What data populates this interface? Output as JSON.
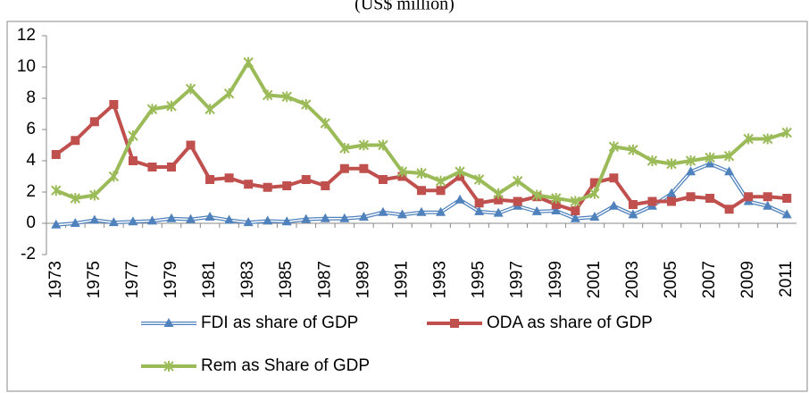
{
  "chart_data": {
    "type": "line",
    "subtitle": "(US$ million)",
    "categories": [
      "1973",
      null,
      "1975",
      null,
      "1977",
      null,
      "1979",
      null,
      "1981",
      null,
      "1983",
      null,
      "1985",
      null,
      "1987",
      null,
      "1989",
      null,
      "1991",
      null,
      "1993",
      null,
      "1995",
      null,
      "1997",
      null,
      "1999",
      null,
      "2001",
      null,
      "2003",
      null,
      "2005",
      null,
      "2007",
      null,
      "2009",
      null,
      "2011"
    ],
    "series": [
      {
        "name": "FDI as share of GDP",
        "color": "#4f81bd",
        "marker": "triangle",
        "values": [
          -0.1,
          0.0,
          0.2,
          0.05,
          0.1,
          0.15,
          0.3,
          0.25,
          0.4,
          0.2,
          0.05,
          0.15,
          0.1,
          0.25,
          0.3,
          0.3,
          0.4,
          0.7,
          0.55,
          0.7,
          0.7,
          1.5,
          0.75,
          0.65,
          1.1,
          0.75,
          0.8,
          0.3,
          0.4,
          1.1,
          0.55,
          1.1,
          1.9,
          3.3,
          3.8,
          3.3,
          1.4,
          1.1,
          0.55
        ]
      },
      {
        "name": "ODA as share of GDP",
        "color": "#c0504d",
        "marker": "square",
        "values": [
          4.4,
          5.3,
          6.5,
          7.6,
          4.0,
          3.6,
          3.6,
          5.0,
          2.8,
          2.9,
          2.5,
          2.3,
          2.4,
          2.8,
          2.4,
          3.5,
          3.5,
          2.8,
          3.0,
          2.1,
          2.1,
          3.0,
          1.3,
          1.5,
          1.4,
          1.7,
          1.2,
          0.8,
          2.6,
          2.9,
          1.2,
          1.4,
          1.4,
          1.7,
          1.6,
          0.9,
          1.7,
          1.7,
          1.6
        ]
      },
      {
        "name": "Rem as Share of GDP",
        "color": "#9bbb59",
        "marker": "star",
        "values": [
          2.1,
          1.6,
          1.8,
          3.0,
          5.6,
          7.3,
          7.5,
          8.6,
          7.3,
          8.3,
          10.3,
          8.2,
          8.1,
          7.6,
          6.4,
          4.8,
          5.0,
          5.0,
          3.3,
          3.2,
          2.7,
          3.3,
          2.8,
          1.9,
          2.7,
          1.8,
          1.6,
          1.4,
          1.9,
          4.9,
          4.7,
          4.0,
          3.8,
          4.0,
          4.2,
          4.3,
          5.4,
          5.4,
          5.8
        ]
      }
    ],
    "ylim": [
      -2,
      12
    ],
    "yticks": [
      -2,
      0,
      2,
      4,
      6,
      8,
      10,
      12
    ],
    "grid": false,
    "legend": "bottom"
  }
}
